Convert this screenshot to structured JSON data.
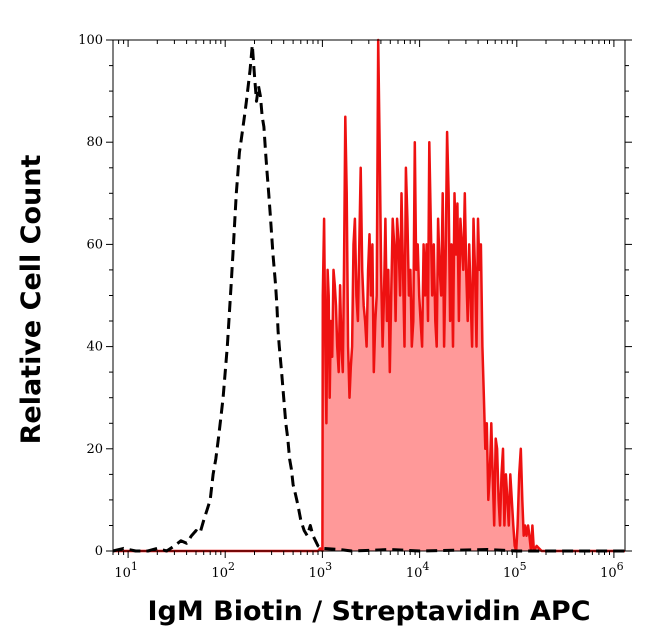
{
  "chart_data": {
    "type": "area",
    "xlabel": "IgM Biotin / Streptavidin APC",
    "ylabel": "Relative Cell Count",
    "xscale": "log",
    "xlim": [
      7,
      1300000
    ],
    "ylim": [
      0,
      100
    ],
    "yticks": [
      0,
      20,
      40,
      60,
      80,
      100
    ],
    "xticks": [
      {
        "value": 10,
        "base": "10",
        "exp": "1"
      },
      {
        "value": 100,
        "base": "10",
        "exp": "2"
      },
      {
        "value": 1000,
        "base": "10",
        "exp": "3"
      },
      {
        "value": 10000,
        "base": "10",
        "exp": "4"
      },
      {
        "value": 100000,
        "base": "10",
        "exp": "5"
      },
      {
        "value": 1000000,
        "base": "10",
        "exp": "6"
      }
    ],
    "grid": false,
    "series": [
      {
        "style": "dashed",
        "color": "#000000",
        "fill": "none",
        "points": [
          [
            7,
            0
          ],
          [
            9,
            0.5
          ],
          [
            12,
            0
          ],
          [
            16,
            0
          ],
          [
            20,
            0.5
          ],
          [
            25,
            0
          ],
          [
            30,
            1
          ],
          [
            35,
            2
          ],
          [
            40,
            1.5
          ],
          [
            45,
            3
          ],
          [
            50,
            4
          ],
          [
            55,
            3.5
          ],
          [
            60,
            6
          ],
          [
            65,
            8
          ],
          [
            70,
            10
          ],
          [
            75,
            15
          ],
          [
            80,
            18
          ],
          [
            85,
            22
          ],
          [
            90,
            26
          ],
          [
            95,
            30
          ],
          [
            100,
            35
          ],
          [
            105,
            40
          ],
          [
            110,
            46
          ],
          [
            115,
            52
          ],
          [
            120,
            58
          ],
          [
            125,
            64
          ],
          [
            130,
            70
          ],
          [
            135,
            74
          ],
          [
            140,
            78
          ],
          [
            145,
            80
          ],
          [
            150,
            82
          ],
          [
            155,
            84
          ],
          [
            160,
            86
          ],
          [
            165,
            88
          ],
          [
            170,
            90
          ],
          [
            180,
            94
          ],
          [
            190,
            99
          ],
          [
            195,
            96
          ],
          [
            200,
            93
          ],
          [
            210,
            88
          ],
          [
            220,
            91
          ],
          [
            230,
            89
          ],
          [
            240,
            85
          ],
          [
            250,
            83
          ],
          [
            260,
            78
          ],
          [
            270,
            74
          ],
          [
            280,
            70
          ],
          [
            290,
            66
          ],
          [
            300,
            62
          ],
          [
            310,
            58
          ],
          [
            320,
            55
          ],
          [
            330,
            52
          ],
          [
            340,
            48
          ],
          [
            350,
            43
          ],
          [
            360,
            40
          ],
          [
            380,
            35
          ],
          [
            400,
            30
          ],
          [
            420,
            25
          ],
          [
            440,
            22
          ],
          [
            460,
            18
          ],
          [
            480,
            16
          ],
          [
            500,
            13
          ],
          [
            530,
            11
          ],
          [
            560,
            9
          ],
          [
            600,
            6
          ],
          [
            650,
            4
          ],
          [
            700,
            3
          ],
          [
            750,
            5
          ],
          [
            800,
            3
          ],
          [
            900,
            1
          ],
          [
            1000,
            0.5
          ],
          [
            1500,
            0.3
          ],
          [
            2000,
            0
          ],
          [
            5000,
            0.3
          ],
          [
            10000,
            0
          ],
          [
            50000,
            0.3
          ],
          [
            100000,
            0
          ],
          [
            1000000,
            0
          ],
          [
            1300000,
            0
          ]
        ]
      },
      {
        "style": "solid",
        "color": "#ee1111",
        "fill": "#ff9999",
        "points": [
          [
            7,
            0
          ],
          [
            100,
            0
          ],
          [
            900,
            0
          ],
          [
            950,
            0.5
          ],
          [
            1000,
            0
          ],
          [
            1010,
            50
          ],
          [
            1040,
            65
          ],
          [
            1070,
            40
          ],
          [
            1100,
            25
          ],
          [
            1130,
            55
          ],
          [
            1160,
            50
          ],
          [
            1190,
            30
          ],
          [
            1220,
            45
          ],
          [
            1260,
            38
          ],
          [
            1300,
            55
          ],
          [
            1340,
            52
          ],
          [
            1380,
            48
          ],
          [
            1420,
            40
          ],
          [
            1470,
            35
          ],
          [
            1520,
            52
          ],
          [
            1570,
            40
          ],
          [
            1620,
            35
          ],
          [
            1670,
            55
          ],
          [
            1720,
            85
          ],
          [
            1780,
            70
          ],
          [
            1840,
            40
          ],
          [
            1900,
            30
          ],
          [
            1960,
            36
          ],
          [
            2020,
            40
          ],
          [
            2090,
            60
          ],
          [
            2160,
            65
          ],
          [
            2240,
            50
          ],
          [
            2320,
            45
          ],
          [
            2400,
            60
          ],
          [
            2480,
            75
          ],
          [
            2570,
            55
          ],
          [
            2660,
            48
          ],
          [
            2750,
            45
          ],
          [
            2850,
            40
          ],
          [
            2950,
            55
          ],
          [
            3050,
            62
          ],
          [
            3160,
            50
          ],
          [
            3270,
            60
          ],
          [
            3380,
            35
          ],
          [
            3500,
            45
          ],
          [
            3620,
            50
          ],
          [
            3750,
            100
          ],
          [
            3880,
            80
          ],
          [
            4020,
            55
          ],
          [
            4160,
            40
          ],
          [
            4300,
            50
          ],
          [
            4450,
            65
          ],
          [
            4610,
            45
          ],
          [
            4770,
            55
          ],
          [
            4940,
            35
          ],
          [
            5110,
            50
          ],
          [
            5290,
            65
          ],
          [
            5480,
            60
          ],
          [
            5670,
            45
          ],
          [
            5870,
            65
          ],
          [
            6080,
            60
          ],
          [
            6300,
            50
          ],
          [
            6520,
            70
          ],
          [
            6750,
            55
          ],
          [
            6990,
            40
          ],
          [
            7240,
            75
          ],
          [
            7500,
            65
          ],
          [
            7760,
            50
          ],
          [
            8040,
            55
          ],
          [
            8320,
            40
          ],
          [
            8620,
            45
          ],
          [
            8920,
            80
          ],
          [
            9240,
            55
          ],
          [
            9570,
            60
          ],
          [
            9900,
            50
          ],
          [
            10250,
            45
          ],
          [
            10620,
            40
          ],
          [
            11000,
            60
          ],
          [
            11400,
            50
          ],
          [
            11800,
            60
          ],
          [
            12200,
            45
          ],
          [
            12600,
            80
          ],
          [
            13100,
            62
          ],
          [
            13500,
            50
          ],
          [
            14000,
            60
          ],
          [
            14500,
            45
          ],
          [
            15000,
            40
          ],
          [
            15500,
            65
          ],
          [
            16100,
            55
          ],
          [
            16700,
            50
          ],
          [
            17300,
            70
          ],
          [
            17900,
            40
          ],
          [
            18500,
            55
          ],
          [
            19200,
            82
          ],
          [
            19900,
            70
          ],
          [
            20600,
            45
          ],
          [
            21300,
            60
          ],
          [
            22100,
            40
          ],
          [
            22900,
            70
          ],
          [
            23700,
            58
          ],
          [
            24500,
            68
          ],
          [
            25400,
            45
          ],
          [
            26300,
            65
          ],
          [
            27200,
            60
          ],
          [
            28200,
            55
          ],
          [
            29200,
            70
          ],
          [
            30200,
            55
          ],
          [
            31300,
            45
          ],
          [
            32400,
            60
          ],
          [
            33500,
            50
          ],
          [
            34700,
            40
          ],
          [
            35900,
            65
          ],
          [
            37200,
            55
          ],
          [
            38500,
            40
          ],
          [
            39900,
            65
          ],
          [
            41300,
            55
          ],
          [
            42800,
            60
          ],
          [
            44300,
            40
          ],
          [
            45900,
            30
          ],
          [
            47500,
            20
          ],
          [
            49200,
            25
          ],
          [
            51000,
            10
          ],
          [
            52800,
            15
          ],
          [
            54700,
            25
          ],
          [
            56600,
            15
          ],
          [
            58600,
            5
          ],
          [
            60700,
            22
          ],
          [
            62800,
            20
          ],
          [
            65000,
            10
          ],
          [
            67300,
            5
          ],
          [
            69700,
            15
          ],
          [
            72200,
            20
          ],
          [
            74700,
            5
          ],
          [
            77400,
            15
          ],
          [
            80100,
            10
          ],
          [
            82900,
            5
          ],
          [
            85900,
            15
          ],
          [
            88900,
            10
          ],
          [
            92100,
            5
          ],
          [
            95300,
            1
          ],
          [
            98700,
            0
          ],
          [
            102000,
            5
          ],
          [
            106000,
            15
          ],
          [
            110000,
            20
          ],
          [
            114000,
            10
          ],
          [
            118000,
            3
          ],
          [
            122000,
            5
          ],
          [
            126000,
            3
          ],
          [
            131000,
            5
          ],
          [
            135000,
            3
          ],
          [
            140000,
            0
          ],
          [
            145000,
            5
          ],
          [
            150000,
            0
          ],
          [
            160000,
            1
          ],
          [
            180000,
            0
          ],
          [
            250000,
            0
          ],
          [
            400000,
            0
          ],
          [
            1000000,
            0
          ],
          [
            1300000,
            0
          ]
        ]
      }
    ]
  }
}
